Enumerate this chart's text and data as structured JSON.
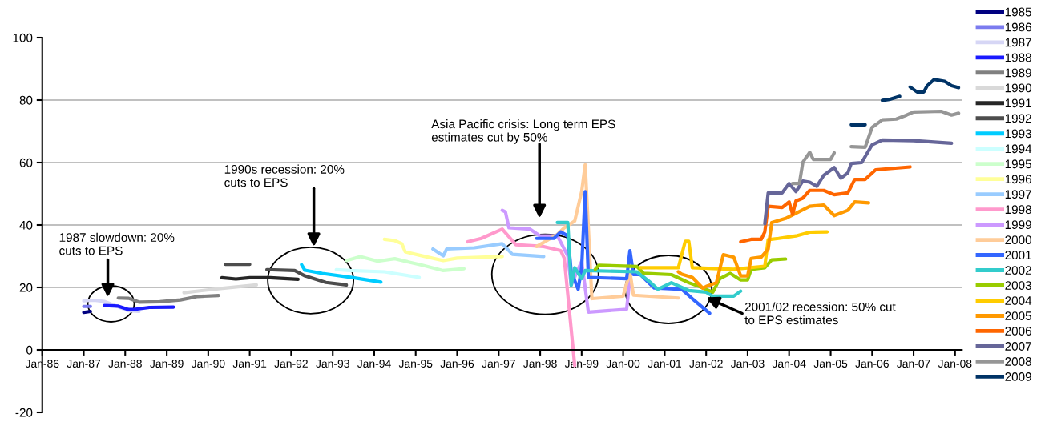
{
  "chart_data": {
    "type": "line",
    "line_style": "solid",
    "grid": "y",
    "legend": "right",
    "xlim": [
      "1986-01",
      "2008-03"
    ],
    "ylim": [
      -20,
      100
    ],
    "yticks": [
      -20,
      0,
      20,
      40,
      60,
      80,
      100
    ],
    "xticks": [
      {
        "value": "1986-01",
        "label": "Jan-86"
      },
      {
        "value": "1987-01",
        "label": "Jan-87"
      },
      {
        "value": "1988-01",
        "label": "Jan-88"
      },
      {
        "value": "1989-01",
        "label": "Jan-89"
      },
      {
        "value": "1990-01",
        "label": "Jan-90"
      },
      {
        "value": "1991-01",
        "label": "Jan-91"
      },
      {
        "value": "1992-01",
        "label": "Jan-92"
      },
      {
        "value": "1993-01",
        "label": "Jan-93"
      },
      {
        "value": "1994-01",
        "label": "Jan-94"
      },
      {
        "value": "1995-01",
        "label": "Jan-95"
      },
      {
        "value": "1996-01",
        "label": "Jan-96"
      },
      {
        "value": "1997-01",
        "label": "Jan-97"
      },
      {
        "value": "1998-01",
        "label": "Jan-98"
      },
      {
        "value": "1999-01",
        "label": "Jan-99"
      },
      {
        "value": "2000-01",
        "label": "Jan-00"
      },
      {
        "value": "2001-01",
        "label": "Jan-01"
      },
      {
        "value": "2002-01",
        "label": "Jan-02"
      },
      {
        "value": "2003-01",
        "label": "Jan-03"
      },
      {
        "value": "2004-01",
        "label": "Jan-04"
      },
      {
        "value": "2005-01",
        "label": "Jan-05"
      },
      {
        "value": "2006-01",
        "label": "Jan-06"
      },
      {
        "value": "2007-01",
        "label": "Jan-07"
      },
      {
        "value": "2008-01",
        "label": "Jan-08"
      }
    ],
    "annotations": [
      {
        "text": "1987 slowdown: 20%\ncuts to EPS",
        "x": "1987-08",
        "y": 16.8
      },
      "1990s recession: 20%\ncuts to EPS",
      "Asia Pacific crisis: Long term EPS\nestimates cut by 50%",
      {
        "text": "2001/02 recession: 50% cut\nto EPS estimates",
        "x": "2002-01",
        "y": 16.8
      }
    ],
    "series": [
      {
        "name": "1985",
        "color": "#000080",
        "x": [
          "1987-01",
          "1987-03"
        ],
        "values": [
          12.0,
          12.3
        ]
      },
      {
        "name": "1986",
        "color": "#7b7bef",
        "x": [
          "1987-01",
          "1987-03"
        ],
        "values": [
          13.9,
          13.9
        ]
      },
      {
        "name": "1987",
        "color": "#d6d6f5",
        "x": [
          "1987-01",
          "1987-04",
          "1987-07",
          "1988-02",
          "1988-05"
        ],
        "values": [
          15.7,
          15.9,
          15.5,
          12.5,
          12.3
        ]
      },
      {
        "name": "1988",
        "color": "#1a1aff",
        "x": [
          "1987-07",
          "1987-11",
          "1988-02",
          "1988-04",
          "1988-08",
          "1989-03"
        ],
        "values": [
          14.2,
          14.0,
          12.9,
          13.0,
          13.6,
          13.7
        ]
      },
      {
        "name": "1989",
        "color": "#808080",
        "x": [
          "1987-11",
          "1988-02",
          "1988-05",
          "1988-11",
          "1989-05",
          "1989-10",
          "1990-04"
        ],
        "values": [
          16.6,
          16.5,
          15.3,
          15.4,
          16.0,
          17.1,
          17.4
        ]
      },
      {
        "name": "1990",
        "color": "#d9d9d9",
        "x": [
          "1989-06",
          "1990-04",
          "1991-03"
        ],
        "values": [
          18.3,
          19.6,
          20.8
        ]
      },
      {
        "name": "1991",
        "color": "#262626",
        "x": [
          "1990-05",
          "1990-09",
          "1991-01",
          "1991-07",
          "1992-03"
        ],
        "values": [
          23.1,
          22.7,
          23.1,
          23.1,
          22.6
        ]
      },
      {
        "name": "1992",
        "color": "#4d4d4d",
        "x": [
          "1990-06",
          "1991-01",
          "1991-03",
          "1991-06",
          "1992-02",
          "1992-05",
          "1992-11",
          "1993-05"
        ],
        "values": [
          27.4,
          27.4,
          null,
          25.7,
          25.4,
          23.7,
          21.6,
          20.8
        ]
      },
      {
        "name": "1993",
        "color": "#00ccff",
        "x": [
          "1992-04",
          "1992-05",
          "1992-10",
          "1993-07",
          "1994-03"
        ],
        "values": [
          27.3,
          25.5,
          24.5,
          23.1,
          21.7
        ]
      },
      {
        "name": "1994",
        "color": "#ccffff",
        "x": [
          "1993-02",
          "1993-06",
          "1994-04",
          "1995-02"
        ],
        "values": [
          25.7,
          25.4,
          25.0,
          23.2
        ]
      },
      {
        "name": "1995",
        "color": "#ccffcc",
        "x": [
          "1993-05",
          "1993-09",
          "1994-02",
          "1994-07",
          "1995-03",
          "1995-09",
          "1996-03"
        ],
        "values": [
          28.6,
          29.9,
          28.4,
          29.2,
          27.1,
          25.4,
          26.0
        ]
      },
      {
        "name": "1996",
        "color": "#ffff99",
        "x": [
          "1994-04",
          "1994-07",
          "1994-09",
          "1994-10",
          "1995-03",
          "1995-09",
          "1996-01",
          "1997-02"
        ],
        "values": [
          35.4,
          35.0,
          34.0,
          31.4,
          30.1,
          28.6,
          29.4,
          29.9
        ]
      },
      {
        "name": "1997",
        "color": "#99ccff",
        "x": [
          "1995-06",
          "1995-09",
          "1995-10",
          "1996-06",
          "1997-02",
          "1997-05",
          "1998-02"
        ],
        "values": [
          32.3,
          30.1,
          32.3,
          32.7,
          34.0,
          30.6,
          29.9
        ]
      },
      {
        "name": "1998",
        "color": "#ff99cc",
        "x": [
          "1996-04",
          "1996-08",
          "1997-02",
          "1997-06",
          "1998-02",
          "1998-07",
          "1998-08",
          "1998-11"
        ],
        "values": [
          34.6,
          35.7,
          38.7,
          33.7,
          33.1,
          31.8,
          29.3,
          -5.0
        ]
      },
      {
        "name": "1999",
        "color": "#cc99ff",
        "x": [
          "1997-02",
          "1997-03",
          "1997-04",
          "1997-10",
          "1998-01",
          "1998-06",
          "1998-07",
          "1998-09",
          "1998-10",
          "1999-01",
          "1999-03",
          "2000-02",
          "2000-03"
        ],
        "values": [
          44.7,
          44.2,
          39.1,
          38.7,
          36.5,
          36.5,
          34.5,
          30.1,
          20.7,
          28.4,
          12.1,
          13.0,
          23.2
        ]
      },
      {
        "name": "2000",
        "color": "#ffcc99",
        "x": [
          "1997-12",
          "1998-06",
          "1998-08",
          "1998-11",
          "1999-01",
          "1999-02",
          "1999-04",
          "2000-01",
          "2000-03",
          "2000-04",
          "2001-05"
        ],
        "values": [
          33.1,
          37.0,
          39.1,
          41.3,
          50.7,
          59.3,
          16.4,
          17.2,
          25.0,
          17.5,
          16.6
        ]
      },
      {
        "name": "2001",
        "color": "#3366ff",
        "x": [
          "1997-12",
          "1998-05",
          "1998-07",
          "1998-09",
          "1998-10",
          "1998-12",
          "1999-01",
          "1999-02",
          "1999-03",
          "2000-02",
          "2000-03",
          "2000-04",
          "2000-06",
          "2000-10",
          "2001-06",
          "2001-09",
          "2002-02"
        ],
        "values": [
          35.7,
          35.7,
          37.8,
          36.5,
          25.0,
          19.4,
          26.3,
          50.7,
          23.2,
          22.8,
          31.8,
          24.1,
          24.1,
          19.8,
          19.4,
          16.4,
          11.7
        ]
      },
      {
        "name": "2002",
        "color": "#33cccc",
        "x": [
          "1998-06",
          "1998-09",
          "1998-10",
          "1998-11",
          "1999-01",
          "1999-02",
          "2000-05",
          "2000-09",
          "2000-11",
          "2001-03",
          "2001-08",
          "2002-01",
          "2002-03",
          "2002-09",
          "2002-11"
        ],
        "values": [
          40.8,
          40.8,
          20.7,
          26.3,
          22.8,
          25.4,
          25.0,
          21.5,
          19.4,
          21.5,
          19.0,
          18.5,
          17.2,
          17.2,
          18.8
        ]
      },
      {
        "name": "2003",
        "color": "#99cc00",
        "x": [
          "1999-05",
          "1999-06",
          "2000-05",
          "2000-07",
          "2001-03",
          "2001-08",
          "2001-11",
          "2002-03",
          "2002-05",
          "2002-08",
          "2002-11",
          "2003-01",
          "2003-02",
          "2003-06",
          "2003-08",
          "2003-12"
        ],
        "values": [
          25.8,
          27.1,
          26.7,
          24.5,
          24.1,
          21.5,
          20.3,
          18.5,
          22.8,
          24.5,
          22.4,
          22.4,
          25.8,
          26.3,
          28.8,
          29.1
        ]
      },
      {
        "name": "2004",
        "color": "#ffcc00",
        "x": [
          "2000-06",
          "2001-05",
          "2001-07",
          "2001-08",
          "2001-09",
          "2002-09",
          "2003-06",
          "2003-07",
          "2003-10",
          "2004-03",
          "2004-07",
          "2004-12"
        ],
        "values": [
          26.3,
          26.3,
          34.8,
          34.8,
          26.3,
          25.8,
          26.8,
          35.3,
          35.7,
          36.5,
          37.7,
          37.8
        ]
      },
      {
        "name": "2005",
        "color": "#ff9900",
        "x": [
          "2001-05",
          "2001-06",
          "2001-09",
          "2001-12",
          "2002-01",
          "2002-04",
          "2002-06",
          "2002-09",
          "2002-11",
          "2003-01",
          "2003-02",
          "2003-05",
          "2003-07",
          "2003-08",
          "2003-12",
          "2004-07",
          "2004-11",
          "2005-02",
          "2005-06",
          "2005-08",
          "2005-12"
        ],
        "values": [
          25.0,
          24.2,
          23.2,
          19.8,
          20.3,
          21.5,
          30.5,
          29.7,
          23.7,
          23.7,
          29.3,
          29.7,
          32.3,
          40.8,
          42.1,
          46.0,
          46.4,
          43.0,
          44.7,
          47.4,
          47.1
        ]
      },
      {
        "name": "2006",
        "color": "#ff6600",
        "x": [
          "2002-11",
          "2003-02",
          "2003-05",
          "2003-06",
          "2003-07",
          "2003-11",
          "2004-01",
          "2004-02",
          "2004-03",
          "2004-05",
          "2004-07",
          "2004-11",
          "2005-02",
          "2005-06",
          "2005-08",
          "2005-11",
          "2006-02",
          "2006-12"
        ],
        "values": [
          34.6,
          35.4,
          35.4,
          37.8,
          46.0,
          45.6,
          47.4,
          43.4,
          47.7,
          48.6,
          51.1,
          51.1,
          49.7,
          50.3,
          54.6,
          54.6,
          57.7,
          58.6
        ]
      },
      {
        "name": "2007",
        "color": "#666699",
        "x": [
          "2003-06",
          "2003-07",
          "2003-11",
          "2004-01",
          "2004-03",
          "2004-05",
          "2004-07",
          "2004-09",
          "2004-11",
          "2005-02",
          "2005-04",
          "2005-06",
          "2005-07",
          "2005-10",
          "2006-01",
          "2006-04",
          "2007-01",
          "2007-12"
        ],
        "values": [
          40.4,
          50.3,
          50.3,
          53.3,
          50.7,
          54.1,
          53.7,
          52.4,
          55.9,
          58.4,
          55.0,
          56.7,
          59.7,
          60.0,
          65.7,
          67.2,
          67.0,
          66.2
        ]
      },
      {
        "name": "2008",
        "color": "#969696",
        "x": [
          "2004-02",
          "2004-04",
          "2004-05",
          "2004-07",
          "2004-08",
          "2005-01",
          "2005-02",
          "2005-04",
          "2005-07",
          "2005-11",
          "2006-01",
          "2006-02",
          "2006-04",
          "2006-08",
          "2006-11",
          "2007-01",
          "2007-09",
          "2007-12",
          "2008-02"
        ],
        "values": [
          53.3,
          53.3,
          60.1,
          63.3,
          61.0,
          61.0,
          63.1,
          null,
          65.1,
          64.9,
          71.3,
          72.1,
          73.7,
          73.9,
          75.2,
          76.2,
          76.4,
          75.2,
          75.8
        ]
      },
      {
        "name": "2009",
        "color": "#003366",
        "x": [
          "2005-07",
          "2005-11",
          "2006-02",
          "2006-04",
          "2006-06",
          "2006-09",
          "2006-10",
          "2006-12",
          "2007-02",
          "2007-04",
          "2007-05",
          "2007-07",
          "2007-10",
          "2007-12",
          "2008-02"
        ],
        "values": [
          72.1,
          72.1,
          null,
          79.9,
          80.2,
          81.2,
          null,
          84.2,
          82.6,
          82.6,
          84.6,
          86.6,
          86.0,
          84.6,
          84.0
        ]
      }
    ]
  }
}
